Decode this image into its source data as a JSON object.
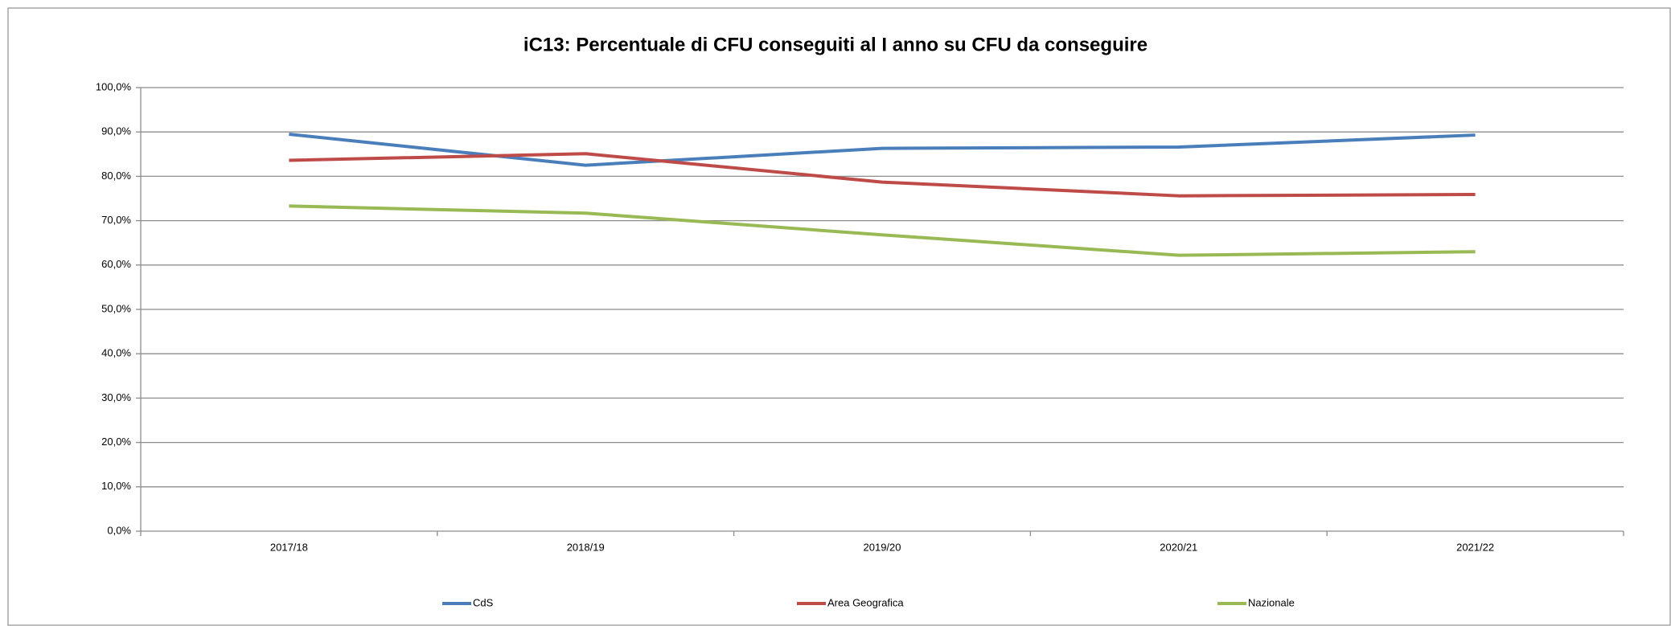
{
  "chart_data": {
    "type": "line",
    "title": "iC13: Percentuale di CFU conseguiti al I anno su CFU da conseguire",
    "categories": [
      "2017/18",
      "2018/19",
      "2019/20",
      "2020/21",
      "2021/22"
    ],
    "series": [
      {
        "name": "CdS",
        "color": "#4a7ebb",
        "values": [
          89.5,
          82.5,
          86.3,
          86.6,
          89.3
        ]
      },
      {
        "name": "Area Geografica",
        "color": "#be4b48",
        "values": [
          83.6,
          85.1,
          78.7,
          75.6,
          75.9
        ]
      },
      {
        "name": "Nazionale",
        "color": "#98b954",
        "values": [
          73.3,
          71.7,
          66.8,
          62.2,
          63.0
        ]
      }
    ],
    "ylim": [
      0,
      100
    ],
    "yticks": [
      {
        "value": 0,
        "label": "0,0%"
      },
      {
        "value": 10,
        "label": "10,0%"
      },
      {
        "value": 20,
        "label": "20,0%"
      },
      {
        "value": 30,
        "label": "30,0%"
      },
      {
        "value": 40,
        "label": "40,0%"
      },
      {
        "value": 50,
        "label": "50,0%"
      },
      {
        "value": 60,
        "label": "60,0%"
      },
      {
        "value": 70,
        "label": "70,0%"
      },
      {
        "value": 80,
        "label": "80,0%"
      },
      {
        "value": 90,
        "label": "90,0%"
      },
      {
        "value": 100,
        "label": "100,0%"
      }
    ],
    "grid": true,
    "legend": "bottom"
  }
}
